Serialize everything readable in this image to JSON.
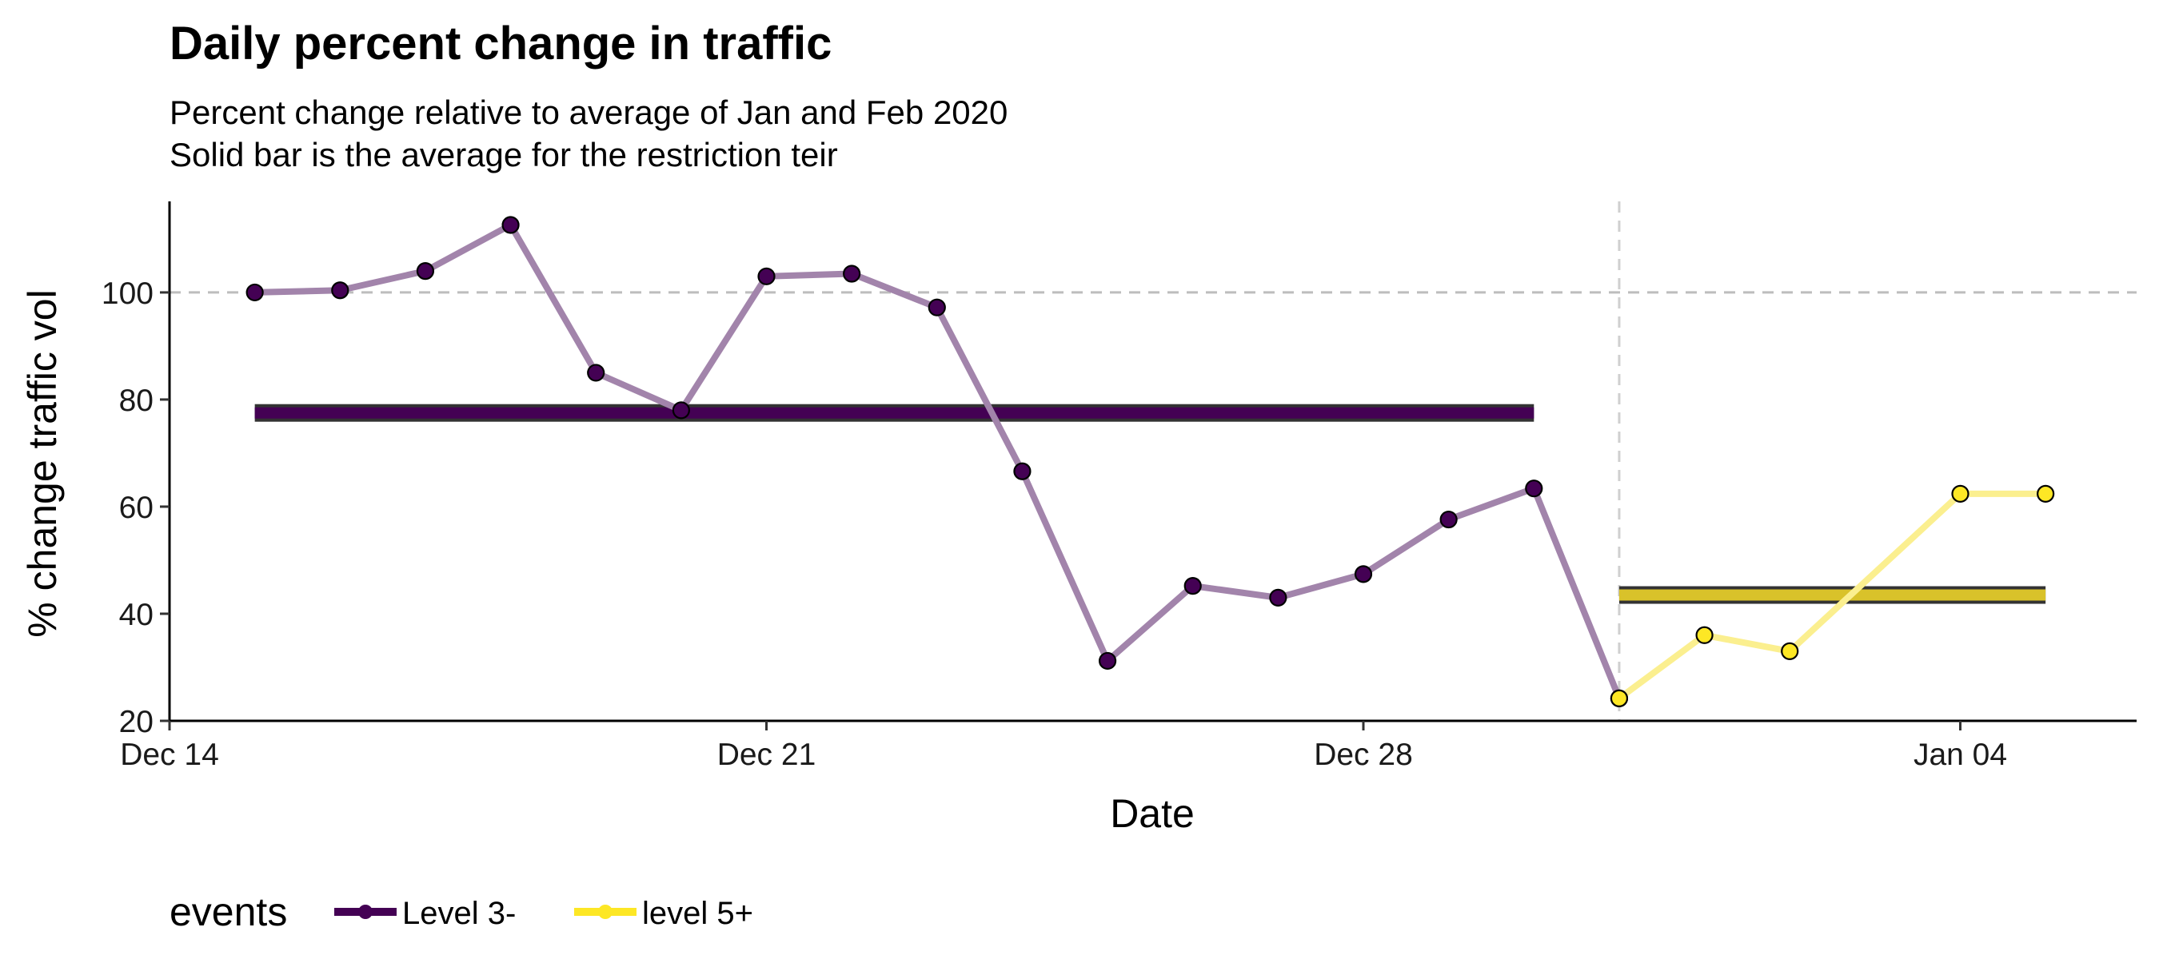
{
  "chart_data": {
    "type": "line",
    "title": "Daily percent change in traffic",
    "subtitle_lines": [
      "Percent change relative to average of Jan and Feb 2020",
      "Solid bar is the average for the restriction teir"
    ],
    "xlabel": "Date",
    "ylabel": "% change traffic vol",
    "ylim": [
      20,
      117
    ],
    "xlim": [
      "2020-12-14",
      "2021-01-05"
    ],
    "x_ticks": [
      {
        "date": "2020-12-14",
        "label": "Dec 14"
      },
      {
        "date": "2020-12-21",
        "label": "Dec 21"
      },
      {
        "date": "2020-12-28",
        "label": "Dec 28"
      },
      {
        "date": "2021-01-04",
        "label": "Jan 04"
      }
    ],
    "y_ticks": [
      20,
      40,
      60,
      80,
      100
    ],
    "reference_line_y": 100,
    "vertical_line_x": "2020-12-31",
    "legend": {
      "title": "events",
      "position": "bottom-left"
    },
    "series": [
      {
        "name": "Level 3-",
        "color": "#440154",
        "line_color": "#a284ab",
        "average": 77.5,
        "average_span": [
          "2020-12-15",
          "2020-12-30"
        ],
        "points": [
          {
            "x": "2020-12-15",
            "y": 100.0
          },
          {
            "x": "2020-12-16",
            "y": 100.4
          },
          {
            "x": "2020-12-17",
            "y": 104.0
          },
          {
            "x": "2020-12-18",
            "y": 112.6
          },
          {
            "x": "2020-12-19",
            "y": 85.0
          },
          {
            "x": "2020-12-20",
            "y": 78.0
          },
          {
            "x": "2020-12-21",
            "y": 103.0
          },
          {
            "x": "2020-12-22",
            "y": 103.5
          },
          {
            "x": "2020-12-23",
            "y": 97.2
          },
          {
            "x": "2020-12-24",
            "y": 66.6
          },
          {
            "x": "2020-12-25",
            "y": 31.2
          },
          {
            "x": "2020-12-26",
            "y": 45.2
          },
          {
            "x": "2020-12-27",
            "y": 43.0
          },
          {
            "x": "2020-12-28",
            "y": 47.4
          },
          {
            "x": "2020-12-29",
            "y": 57.6
          },
          {
            "x": "2020-12-30",
            "y": 63.4
          },
          {
            "x": "2020-12-31",
            "y": 24.2
          }
        ]
      },
      {
        "name": "level 5+",
        "color": "#fde725",
        "line_color": "#fbef8f",
        "average": 43.5,
        "average_span": [
          "2020-12-31",
          "2021-01-05"
        ],
        "points": [
          {
            "x": "2020-12-31",
            "y": 24.2
          },
          {
            "x": "2021-01-01",
            "y": 36.0
          },
          {
            "x": "2021-01-02",
            "y": 33.0
          },
          {
            "x": "2021-01-04",
            "y": 62.4
          },
          {
            "x": "2021-01-05",
            "y": 62.4
          }
        ]
      }
    ]
  }
}
